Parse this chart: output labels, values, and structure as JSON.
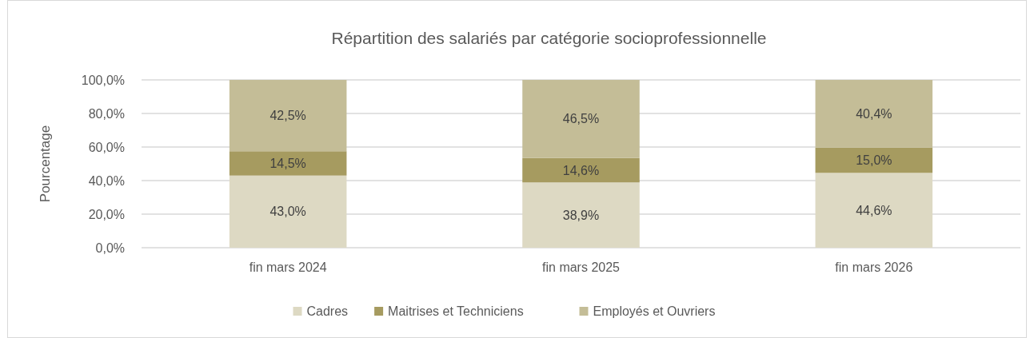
{
  "chart_data": {
    "type": "bar",
    "title": "Répartition des salariés par catégorie socioprofessionnelle",
    "ylabel": "Pourcentage",
    "categories": [
      "fin mars 2024",
      "fin mars 2025",
      "fin mars 2026"
    ],
    "stacked": true,
    "series": [
      {
        "name": "Cadres",
        "color": "#ddd9c3",
        "values": [
          43.0,
          38.9,
          44.6
        ],
        "value_labels": [
          "43,0%",
          "38,9%",
          "44,6%"
        ]
      },
      {
        "name": "Maitrises et Techniciens",
        "color": "#a69b60",
        "values": [
          14.5,
          14.6,
          15.0
        ],
        "value_labels": [
          "14,5%",
          "14,6%",
          "15,0%"
        ]
      },
      {
        "name": "Employés et Ouvriers",
        "color": "#c4bd97",
        "values": [
          42.5,
          46.5,
          40.4
        ],
        "value_labels": [
          "42,5%",
          "46,5%",
          "40,4%"
        ]
      }
    ],
    "ylim": [
      0,
      100
    ],
    "yticks": [
      {
        "value": 0,
        "label": "0,0%"
      },
      {
        "value": 20,
        "label": "20,0%"
      },
      {
        "value": 40,
        "label": "40,0%"
      },
      {
        "value": 60,
        "label": "60,0%"
      },
      {
        "value": 80,
        "label": "80,0%"
      },
      {
        "value": 100,
        "label": "100,0%"
      }
    ],
    "grid": "y",
    "legend": "bottom"
  }
}
